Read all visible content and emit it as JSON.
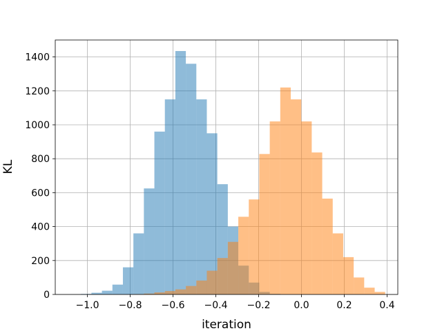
{
  "chart_data": {
    "type": "histogram",
    "title": "",
    "xlabel": "iteration",
    "ylabel": "KL",
    "xlim": [
      -1.15,
      0.45
    ],
    "ylim": [
      0,
      1500
    ],
    "grid": true,
    "xticks": [
      -1.0,
      -0.8,
      -0.6,
      -0.4,
      -0.2,
      0.0,
      0.2,
      0.4
    ],
    "xtick_labels": [
      "−1.0",
      "−0.8",
      "−0.6",
      "−0.4",
      "−0.2",
      "0.0",
      "0.2",
      "0.4"
    ],
    "yticks": [
      0,
      200,
      400,
      600,
      800,
      1000,
      1200,
      1400
    ],
    "ytick_labels": [
      "0",
      "200",
      "400",
      "600",
      "800",
      "1000",
      "1200",
      "1400"
    ],
    "series": [
      {
        "color": "#1f77b4",
        "opacity": 0.5,
        "bin_width": 0.049,
        "bin_starts": [
          -1.079,
          -1.03,
          -0.981,
          -0.932,
          -0.883,
          -0.834,
          -0.785,
          -0.736,
          -0.687,
          -0.638,
          -0.589,
          -0.54,
          -0.491,
          -0.442,
          -0.393,
          -0.344,
          -0.295,
          -0.246,
          -0.197,
          -0.148
        ],
        "values": [
          1,
          3,
          10,
          22,
          58,
          160,
          360,
          625,
          960,
          1150,
          1435,
          1360,
          1150,
          950,
          650,
          400,
          170,
          70,
          15,
          4
        ]
      },
      {
        "color": "#ff7f0e",
        "opacity": 0.5,
        "bin_width": 0.049,
        "bin_starts": [
          -0.785,
          -0.736,
          -0.687,
          -0.638,
          -0.589,
          -0.54,
          -0.491,
          -0.442,
          -0.393,
          -0.344,
          -0.295,
          -0.246,
          -0.197,
          -0.148,
          -0.099,
          -0.05,
          -0.001,
          0.048,
          0.097,
          0.146,
          0.195,
          0.244,
          0.293,
          0.342
        ],
        "values": [
          2,
          5,
          12,
          20,
          30,
          50,
          82,
          140,
          215,
          310,
          458,
          560,
          828,
          1020,
          1220,
          1150,
          1020,
          837,
          565,
          360,
          220,
          100,
          40,
          15
        ]
      }
    ]
  }
}
